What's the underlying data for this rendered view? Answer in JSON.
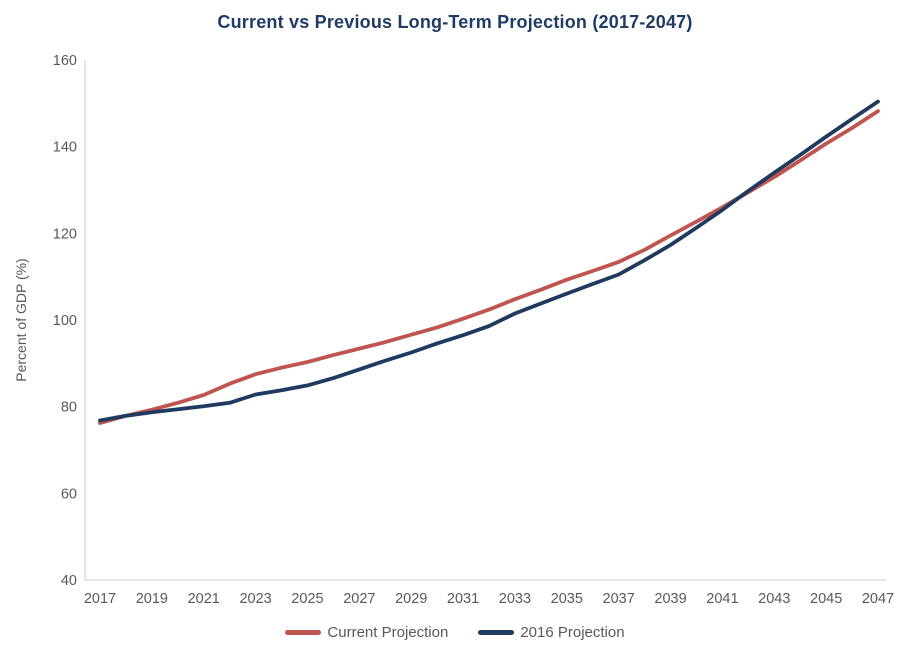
{
  "styles": {
    "title_color": "#1F3C64",
    "axis_text_color": "#595959",
    "legend_text_color": "#595959",
    "axis_line_color": "#C9C9C9",
    "background": "#FFFFFF"
  },
  "chart_data": {
    "type": "line",
    "title": "Current vs Previous Long-Term Projection (2017-2047)",
    "xlabel": "",
    "ylabel": "Percent of GDP (%)",
    "ylim": [
      40,
      160
    ],
    "yticks": [
      40,
      60,
      80,
      100,
      120,
      140,
      160
    ],
    "xtick_step": 2,
    "grid": false,
    "legend_position": "bottom",
    "x": [
      2017,
      2018,
      2019,
      2020,
      2021,
      2022,
      2023,
      2024,
      2025,
      2026,
      2027,
      2028,
      2029,
      2030,
      2031,
      2032,
      2033,
      2034,
      2035,
      2036,
      2037,
      2038,
      2039,
      2040,
      2041,
      2042,
      2043,
      2044,
      2045,
      2046,
      2047
    ],
    "series": [
      {
        "name": "Current Projection",
        "color": "#C0544F",
        "values": [
          76.2,
          77.9,
          79.3,
          80.9,
          82.7,
          85.3,
          87.5,
          89.0,
          90.3,
          91.9,
          93.4,
          94.9,
          96.6,
          98.3,
          100.3,
          102.4,
          104.8,
          107.0,
          109.3,
          111.3,
          113.4,
          116.2,
          119.5,
          122.7,
          126.0,
          129.5,
          133.0,
          136.8,
          140.7,
          144.3,
          148.2
        ]
      },
      {
        "name": "2016 Projection",
        "color": "#1F3A5E",
        "values": [
          76.8,
          77.9,
          78.7,
          79.4,
          80.1,
          80.9,
          82.8,
          83.8,
          84.9,
          86.6,
          88.6,
          90.6,
          92.5,
          94.6,
          96.5,
          98.6,
          101.5,
          103.8,
          106.1,
          108.3,
          110.5,
          113.8,
          117.3,
          121.3,
          125.4,
          129.8,
          134.0,
          138.1,
          142.3,
          146.4,
          150.4
        ]
      }
    ]
  }
}
